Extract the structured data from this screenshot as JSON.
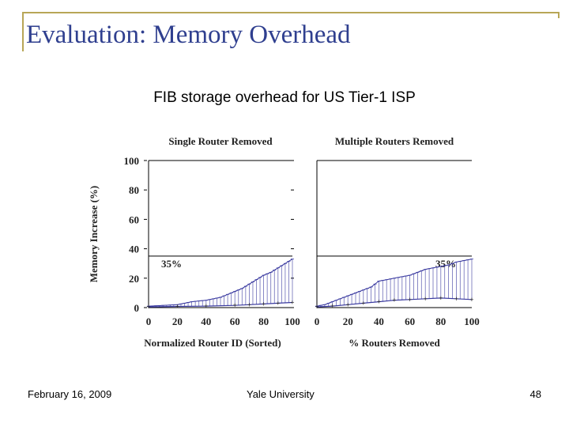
{
  "slide": {
    "title": "Evaluation: Memory Overhead",
    "subtitle": "FIB storage overhead for US Tier-1 ISP"
  },
  "footer": {
    "date": "February 16, 2009",
    "organization": "Yale University",
    "page": "48"
  },
  "colors": {
    "title": "#2f3f8f",
    "frame": "#b8a657",
    "series": "#3a3aa0"
  },
  "chart_data": [
    {
      "type": "line",
      "title": "Single Router Removed",
      "xlabel": "Normalized Router ID (Sorted)",
      "ylabel": "Memory Increase (%)",
      "xlim": [
        0,
        100
      ],
      "ylim": [
        0,
        100
      ],
      "xticks": [
        0,
        20,
        40,
        60,
        80,
        100
      ],
      "yticks": [
        0,
        20,
        40,
        60,
        80,
        100
      ],
      "annotation": {
        "text": "35%",
        "y": 35
      },
      "series": [
        {
          "role": "max",
          "x": [
            0,
            10,
            20,
            30,
            40,
            50,
            55,
            60,
            65,
            70,
            75,
            80,
            85,
            90,
            95,
            100
          ],
          "values": [
            1,
            1.5,
            2,
            4,
            5,
            7,
            9,
            11,
            13,
            16,
            19,
            22,
            24,
            27,
            30,
            33
          ]
        },
        {
          "role": "median",
          "x": [
            0,
            20,
            40,
            60,
            70,
            80,
            90,
            100
          ],
          "values": [
            0.5,
            0.8,
            1,
            1.5,
            2,
            2.5,
            3,
            3.5
          ]
        }
      ]
    },
    {
      "type": "line",
      "title": "Multiple Routers Removed",
      "xlabel": "% Routers Removed",
      "ylabel": "",
      "xlim": [
        0,
        100
      ],
      "ylim": [
        0,
        100
      ],
      "xticks": [
        0,
        20,
        40,
        60,
        80,
        100
      ],
      "annotation": {
        "text": "35%",
        "y": 35
      },
      "series": [
        {
          "role": "max",
          "x": [
            0,
            5,
            10,
            15,
            20,
            25,
            30,
            35,
            40,
            45,
            50,
            55,
            60,
            65,
            70,
            75,
            80,
            85,
            90,
            95,
            100
          ],
          "values": [
            1,
            2,
            4,
            6,
            8,
            10,
            12,
            14,
            18,
            19,
            20,
            21,
            22,
            24,
            26,
            27,
            28,
            29,
            31,
            32,
            33
          ]
        },
        {
          "role": "median",
          "x": [
            0,
            10,
            20,
            30,
            40,
            50,
            60,
            70,
            80,
            90,
            100
          ],
          "values": [
            0.5,
            1,
            2,
            3,
            4,
            5,
            5.5,
            6,
            6.5,
            6,
            5.5
          ]
        }
      ]
    }
  ]
}
